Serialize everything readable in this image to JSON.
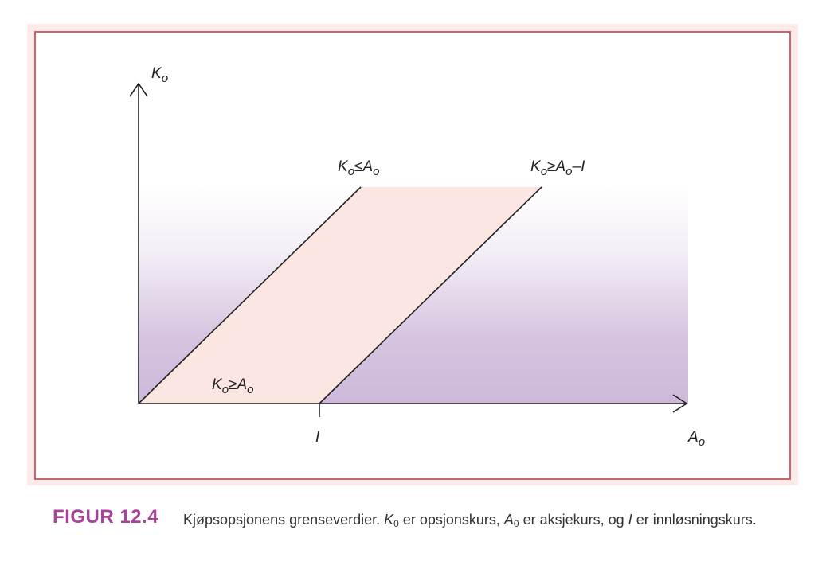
{
  "colors": {
    "frame_fill": "#fcebe8",
    "frame_border": "#d8606a",
    "region_fill": "#fbe6e2",
    "gradient_top": "#ffffff",
    "gradient_bottom": "#cdb8d9",
    "line": "#222222",
    "caption_label": "#a8439a"
  },
  "diagram": {
    "y_axis_label": {
      "main": "K",
      "sub": "o"
    },
    "x_axis_label": {
      "main": "A",
      "sub": "o"
    },
    "x_tick_label": "I",
    "line_upper": {
      "k": "K",
      "k_sub": "o",
      "rel": "≤",
      "a": "A",
      "a_sub": "o"
    },
    "line_lower": {
      "k": "K",
      "k_sub": "o",
      "rel": "≥",
      "a": "A",
      "a_sub": "o",
      "tail": "–I"
    },
    "region_lower": {
      "k": "K",
      "k_sub": "o",
      "rel": "≥",
      "a": "A",
      "a_sub": "o"
    }
  },
  "caption": {
    "label": "FIGUR 12.4",
    "part1": "Kjøpsopsjonens grenseverdier. ",
    "k": "K",
    "k_sub": "0",
    "part2": " er opsjonskurs, ",
    "a": "A",
    "a_sub": "0",
    "part3": " er aksjekurs, og ",
    "i": "I",
    "part4": " er innløsningskurs."
  }
}
